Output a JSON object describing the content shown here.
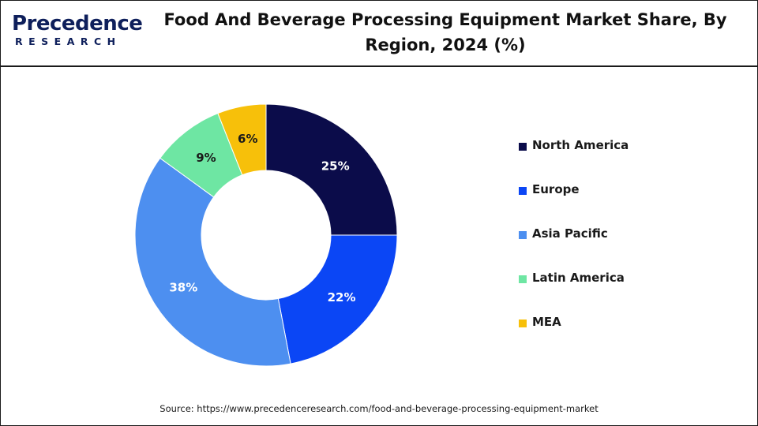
{
  "brand": {
    "name": "Precedence",
    "tagline": "RESEARCH"
  },
  "chart_data": {
    "type": "pie",
    "title": "Food And Beverage Processing Equipment Market Share, By Region, 2024 (%)",
    "categories": [
      "North America",
      "Europe",
      "Asia Pacific",
      "Latin America",
      "MEA"
    ],
    "values": [
      25,
      22,
      38,
      9,
      6
    ],
    "data_labels": [
      "25%",
      "22%",
      "38%",
      "9%",
      "6%"
    ],
    "colors": [
      "#0b0c4a",
      "#0b46f5",
      "#4d8ff0",
      "#6ee6a3",
      "#f7c00a"
    ],
    "donut": true,
    "legend_position": "right"
  },
  "source": "Source: https://www.precedenceresearch.com/food-and-beverage-processing-equipment-market"
}
